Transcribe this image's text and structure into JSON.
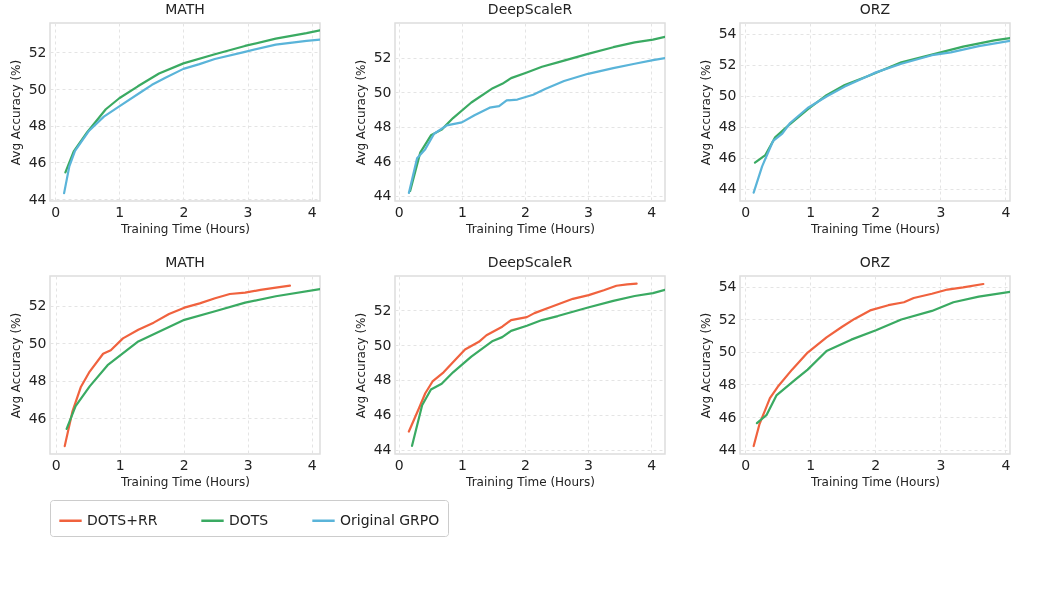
{
  "chart_data": [
    {
      "type": "line",
      "title": "MATH",
      "xlabel": "Training Time (Hours)",
      "ylabel": "Avg Accuracy (%)",
      "xlim": [
        -0.08,
        4.13
      ],
      "ylim": [
        43.9,
        53.6
      ],
      "xticks": [
        0,
        1,
        2,
        3,
        4
      ],
      "yticks": [
        44,
        46,
        48,
        50,
        52
      ],
      "grid": true,
      "legend": "bottom",
      "series": [
        {
          "name": "DOTS",
          "color": "#3aaa62",
          "x": [
            0.16,
            0.29,
            0.5,
            0.79,
            1.0,
            1.29,
            1.62,
            2.0,
            2.49,
            2.96,
            3.44,
            3.92,
            4.13
          ],
          "values": [
            45.46,
            46.6,
            47.65,
            48.9,
            49.5,
            50.15,
            50.85,
            51.4,
            51.9,
            52.35,
            52.75,
            53.05,
            53.2
          ]
        },
        {
          "name": "Original GRPO",
          "color": "#5ab4d9",
          "x": [
            0.14,
            0.22,
            0.31,
            0.53,
            0.76,
            1.0,
            1.34,
            1.51,
            1.72,
            2.0,
            2.25,
            2.49,
            2.96,
            3.44,
            3.92,
            4.13
          ],
          "values": [
            44.33,
            45.77,
            46.63,
            47.73,
            48.5,
            49.06,
            49.84,
            50.23,
            50.62,
            51.1,
            51.36,
            51.64,
            52.03,
            52.42,
            52.63,
            52.69
          ]
        }
      ]
    },
    {
      "type": "line",
      "title": "DeepScaleR",
      "xlabel": "Training Time (Hours)",
      "ylabel": "Avg Accuracy (%)",
      "xlim": [
        -0.06,
        4.22
      ],
      "ylim": [
        43.7,
        54.0
      ],
      "xticks": [
        0,
        1,
        2,
        3,
        4
      ],
      "yticks": [
        44,
        46,
        48,
        50,
        52
      ],
      "grid": true,
      "legend": "bottom",
      "series": [
        {
          "name": "DOTS",
          "color": "#3aaa62",
          "x": [
            0.18,
            0.34,
            0.51,
            0.68,
            0.86,
            1.15,
            1.49,
            1.64,
            1.78,
            2.03,
            2.27,
            2.52,
            3.0,
            3.4,
            3.74,
            4.03,
            4.22
          ],
          "values": [
            44.28,
            46.5,
            47.5,
            47.83,
            48.5,
            49.4,
            50.23,
            50.48,
            50.81,
            51.14,
            51.47,
            51.72,
            52.21,
            52.6,
            52.88,
            53.04,
            53.2
          ]
        },
        {
          "name": "Original GRPO",
          "color": "#5ab4d9",
          "x": [
            0.16,
            0.29,
            0.42,
            0.56,
            0.76,
            1.0,
            1.2,
            1.44,
            1.59,
            1.71,
            1.88,
            2.13,
            2.32,
            2.62,
            3.0,
            3.4,
            3.74,
            4.03,
            4.22
          ],
          "values": [
            44.17,
            46.18,
            46.7,
            47.59,
            48.08,
            48.25,
            48.66,
            49.1,
            49.19,
            49.52,
            49.57,
            49.85,
            50.18,
            50.64,
            51.06,
            51.39,
            51.64,
            51.85,
            51.97
          ]
        }
      ]
    },
    {
      "type": "line",
      "title": "ORZ",
      "xlabel": "Training Time (Hours)",
      "ylabel": "Avg Accuracy (%)",
      "xlim": [
        -0.08,
        4.07
      ],
      "ylim": [
        43.2,
        54.7
      ],
      "xticks": [
        0,
        1,
        2,
        3,
        4
      ],
      "yticks": [
        44,
        46,
        48,
        50,
        52,
        54
      ],
      "grid": true,
      "legend": "bottom",
      "series": [
        {
          "name": "DOTS",
          "color": "#3aaa62",
          "x": [
            0.15,
            0.31,
            0.46,
            0.67,
            0.96,
            1.25,
            1.53,
            1.92,
            2.4,
            2.87,
            3.35,
            3.83,
            4.07
          ],
          "values": [
            45.68,
            46.17,
            47.31,
            48.1,
            49.12,
            50.04,
            50.69,
            51.33,
            52.16,
            52.66,
            53.17,
            53.58,
            53.72
          ]
        },
        {
          "name": "Original GRPO",
          "color": "#5ab4d9",
          "x": [
            0.13,
            0.26,
            0.43,
            0.57,
            0.69,
            0.96,
            1.25,
            1.53,
            1.82,
            2.01,
            2.4,
            2.87,
            3.16,
            3.59,
            4.07
          ],
          "values": [
            43.74,
            45.44,
            47.09,
            47.55,
            48.24,
            49.21,
            49.95,
            50.59,
            51.15,
            51.51,
            52.07,
            52.62,
            52.8,
            53.21,
            53.54
          ]
        }
      ]
    },
    {
      "type": "line",
      "title": "MATH",
      "xlabel": "Training Time (Hours)",
      "ylabel": "Avg Accuracy (%)",
      "xlim": [
        -0.09,
        4.13
      ],
      "ylim": [
        44.1,
        53.6
      ],
      "xticks": [
        0,
        1,
        2,
        3,
        4
      ],
      "yticks": [
        46,
        48,
        50,
        52
      ],
      "grid": true,
      "legend": "bottom",
      "series": [
        {
          "name": "DOTS+RR",
          "color": "#f0623e",
          "x": [
            0.14,
            0.26,
            0.39,
            0.53,
            0.74,
            0.86,
            1.05,
            1.29,
            1.53,
            1.77,
            2.01,
            2.25,
            2.49,
            2.72,
            2.96,
            3.2,
            3.44,
            3.66
          ],
          "values": [
            44.52,
            46.36,
            47.66,
            48.5,
            49.45,
            49.64,
            50.27,
            50.73,
            51.11,
            51.57,
            51.91,
            52.14,
            52.41,
            52.64,
            52.71,
            52.86,
            52.98,
            53.09
          ]
        },
        {
          "name": "DOTS",
          "color": "#3aaa62",
          "x": [
            0.17,
            0.31,
            0.53,
            0.81,
            1.29,
            2.01,
            2.49,
            2.96,
            3.44,
            4.13
          ],
          "values": [
            45.44,
            46.66,
            47.71,
            48.84,
            50.11,
            51.26,
            51.72,
            52.18,
            52.52,
            52.9
          ]
        }
      ]
    },
    {
      "type": "line",
      "title": "DeepScaleR",
      "xlabel": "Training Time (Hours)",
      "ylabel": "Avg Accuracy (%)",
      "xlim": [
        -0.06,
        4.22
      ],
      "ylim": [
        43.75,
        53.97
      ],
      "xticks": [
        0,
        1,
        2,
        3,
        4
      ],
      "yticks": [
        44,
        46,
        48,
        50,
        52
      ],
      "grid": true,
      "legend": "bottom",
      "series": [
        {
          "name": "DOTS+RR",
          "color": "#f0623e",
          "x": [
            0.16,
            0.32,
            0.42,
            0.54,
            0.71,
            0.9,
            1.05,
            1.27,
            1.39,
            1.64,
            1.78,
            2.03,
            2.15,
            2.42,
            2.76,
            3.01,
            3.25,
            3.45,
            3.62,
            3.77
          ],
          "values": [
            45.04,
            46.38,
            47.24,
            47.94,
            48.44,
            49.18,
            49.75,
            50.19,
            50.57,
            51.06,
            51.44,
            51.61,
            51.84,
            52.21,
            52.66,
            52.87,
            53.15,
            53.41,
            53.49,
            53.53
          ]
        },
        {
          "name": "DOTS",
          "color": "#3aaa62",
          "x": [
            0.21,
            0.37,
            0.51,
            0.68,
            0.86,
            1.15,
            1.49,
            1.64,
            1.78,
            2.03,
            2.27,
            2.52,
            3.0,
            3.4,
            3.74,
            4.03,
            4.22
          ],
          "values": [
            44.22,
            46.55,
            47.45,
            47.78,
            48.44,
            49.34,
            50.24,
            50.46,
            50.82,
            51.11,
            51.44,
            51.67,
            52.16,
            52.54,
            52.82,
            52.99,
            53.17
          ]
        }
      ]
    },
    {
      "type": "line",
      "title": "ORZ",
      "xlabel": "Training Time (Hours)",
      "ylabel": "Avg Accuracy (%)",
      "xlim": [
        -0.08,
        4.07
      ],
      "ylim": [
        43.74,
        54.65
      ],
      "xticks": [
        0,
        1,
        2,
        3,
        4
      ],
      "yticks": [
        44,
        46,
        48,
        50,
        52,
        54
      ],
      "grid": true,
      "legend": "bottom",
      "series": [
        {
          "name": "DOTS+RR",
          "color": "#f0623e",
          "x": [
            0.13,
            0.22,
            0.38,
            0.5,
            0.72,
            0.96,
            1.25,
            1.49,
            1.68,
            1.92,
            2.2,
            2.44,
            2.59,
            2.87,
            3.11,
            3.35,
            3.66
          ],
          "values": [
            44.23,
            45.58,
            47.16,
            47.86,
            48.91,
            49.96,
            50.89,
            51.54,
            52.02,
            52.54,
            52.86,
            53.04,
            53.3,
            53.56,
            53.82,
            53.95,
            54.16
          ]
        },
        {
          "name": "DOTS",
          "color": "#3aaa62",
          "x": [
            0.18,
            0.33,
            0.48,
            0.77,
            0.96,
            1.25,
            1.63,
            2.01,
            2.4,
            2.87,
            3.2,
            3.59,
            4.07
          ],
          "values": [
            45.63,
            46.14,
            47.33,
            48.3,
            48.91,
            50.05,
            50.75,
            51.32,
            51.98,
            52.51,
            53.04,
            53.39,
            53.68
          ]
        }
      ]
    }
  ]
}
